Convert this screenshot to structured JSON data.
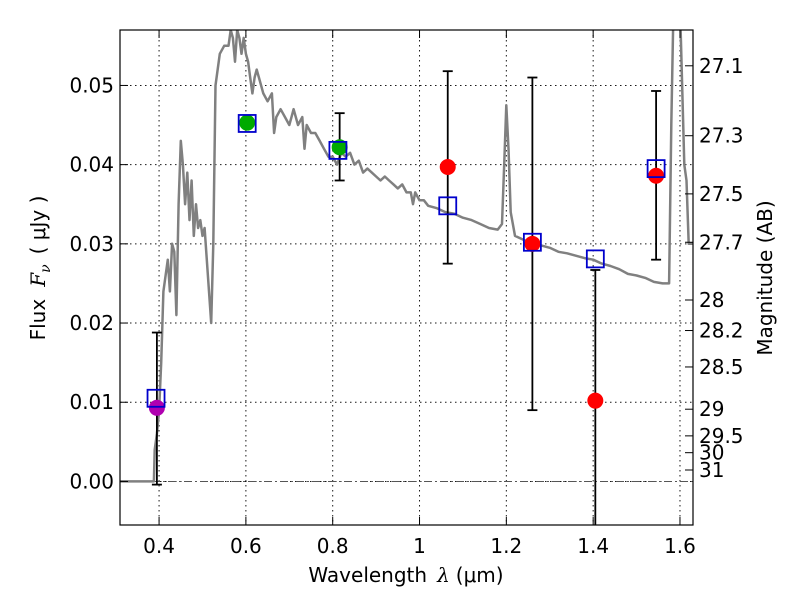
{
  "chart_data": {
    "type": "scatter",
    "title": "",
    "xlabel": "Wavelength",
    "xlabel_symbol": "λ",
    "xlabel_unit": "(μm)",
    "ylabel": "Flux",
    "ylabel_symbol": "F",
    "ylabel_subscript": "ν",
    "ylabel_unit": "( μJy )",
    "ylabel_right": "Magnitude (AB)",
    "xlim": [
      0.31,
      1.63
    ],
    "ylim": [
      -0.0055,
      0.057
    ],
    "grid": true,
    "x_ticks": [
      {
        "value": 0.4,
        "label": "0.4"
      },
      {
        "value": 0.6,
        "label": "0.6"
      },
      {
        "value": 0.8,
        "label": "0.8"
      },
      {
        "value": 1.0,
        "label": "1"
      },
      {
        "value": 1.2,
        "label": "1.2"
      },
      {
        "value": 1.4,
        "label": "1.4"
      },
      {
        "value": 1.6,
        "label": "1.6"
      }
    ],
    "y_ticks": [
      {
        "value": 0.0,
        "label": "0.00"
      },
      {
        "value": 0.01,
        "label": "0.01"
      },
      {
        "value": 0.02,
        "label": "0.02"
      },
      {
        "value": 0.03,
        "label": "0.03"
      },
      {
        "value": 0.04,
        "label": "0.04"
      },
      {
        "value": 0.05,
        "label": "0.05"
      }
    ],
    "mag_ticks": [
      {
        "mag": 27.1,
        "label": "27.1"
      },
      {
        "mag": 27.3,
        "label": "27.3"
      },
      {
        "mag": 27.5,
        "label": "27.5"
      },
      {
        "mag": 27.7,
        "label": "27.7"
      },
      {
        "mag": 28,
        "label": "28"
      },
      {
        "mag": 28.2,
        "label": "28.2"
      },
      {
        "mag": 28.5,
        "label": "28.5"
      },
      {
        "mag": 29,
        "label": "29"
      },
      {
        "mag": 29.5,
        "label": "29.5"
      },
      {
        "mag": 30,
        "label": "30"
      },
      {
        "mag": 31,
        "label": "31"
      }
    ],
    "observed": [
      {
        "x": 0.395,
        "y": 0.0093,
        "yerr_low": 0.0097,
        "yerr_high": 0.0095,
        "color": "#b000b0"
      },
      {
        "x": 0.603,
        "y": 0.0453,
        "yerr_low": null,
        "yerr_high": null,
        "color": "#00aa00"
      },
      {
        "x": 0.816,
        "y": 0.0422,
        "yerr_low": 0.0042,
        "yerr_high": 0.0043,
        "color": "#00aa00"
      },
      {
        "x": 1.065,
        "y": 0.0397,
        "yerr_low": 0.0122,
        "yerr_high": 0.0121,
        "color": "#ff0000"
      },
      {
        "x": 1.26,
        "y": 0.03,
        "yerr_low": 0.021,
        "yerr_high": 0.021,
        "color": "#ff0000"
      },
      {
        "x": 1.405,
        "y": 0.0102,
        "yerr_low": 0.0165,
        "yerr_high": 0.0165,
        "color": "#ff0000"
      },
      {
        "x": 1.545,
        "y": 0.0386,
        "yerr_low": 0.0106,
        "yerr_high": 0.0107,
        "color": "#ff0000"
      }
    ],
    "model_photometry": [
      {
        "x": 0.393,
        "y": 0.0105
      },
      {
        "x": 0.603,
        "y": 0.0452
      },
      {
        "x": 0.812,
        "y": 0.0418
      },
      {
        "x": 1.065,
        "y": 0.0348
      },
      {
        "x": 1.26,
        "y": 0.0302
      },
      {
        "x": 1.405,
        "y": 0.0281
      },
      {
        "x": 1.545,
        "y": 0.0395
      }
    ],
    "model_sed": [
      [
        0.31,
        0.0
      ],
      [
        0.385,
        0.0
      ],
      [
        0.388,
        0.0
      ],
      [
        0.39,
        0.004
      ],
      [
        0.395,
        0.006
      ],
      [
        0.4,
        0.009
      ],
      [
        0.405,
        0.015
      ],
      [
        0.41,
        0.024
      ],
      [
        0.415,
        0.026
      ],
      [
        0.42,
        0.028
      ],
      [
        0.425,
        0.024
      ],
      [
        0.43,
        0.03
      ],
      [
        0.435,
        0.029
      ],
      [
        0.44,
        0.021
      ],
      [
        0.445,
        0.035
      ],
      [
        0.45,
        0.043
      ],
      [
        0.455,
        0.04
      ],
      [
        0.46,
        0.035
      ],
      [
        0.465,
        0.039
      ],
      [
        0.47,
        0.033
      ],
      [
        0.475,
        0.038
      ],
      [
        0.48,
        0.031
      ],
      [
        0.485,
        0.035
      ],
      [
        0.49,
        0.032
      ],
      [
        0.495,
        0.033
      ],
      [
        0.5,
        0.031
      ],
      [
        0.505,
        0.032
      ],
      [
        0.51,
        0.028
      ],
      [
        0.515,
        0.024
      ],
      [
        0.52,
        0.02
      ],
      [
        0.525,
        0.03
      ],
      [
        0.53,
        0.05
      ],
      [
        0.54,
        0.054
      ],
      [
        0.55,
        0.055
      ],
      [
        0.56,
        0.055
      ],
      [
        0.565,
        0.057
      ],
      [
        0.57,
        0.056
      ],
      [
        0.575,
        0.053
      ],
      [
        0.58,
        0.057
      ],
      [
        0.585,
        0.056
      ],
      [
        0.59,
        0.054
      ],
      [
        0.595,
        0.056
      ],
      [
        0.6,
        0.054
      ],
      [
        0.605,
        0.053
      ],
      [
        0.61,
        0.051
      ],
      [
        0.615,
        0.049
      ],
      [
        0.62,
        0.051
      ],
      [
        0.625,
        0.052
      ],
      [
        0.63,
        0.051
      ],
      [
        0.635,
        0.05
      ],
      [
        0.64,
        0.049
      ],
      [
        0.65,
        0.048
      ],
      [
        0.66,
        0.049
      ],
      [
        0.665,
        0.044
      ],
      [
        0.67,
        0.046
      ],
      [
        0.68,
        0.047
      ],
      [
        0.69,
        0.046
      ],
      [
        0.7,
        0.045
      ],
      [
        0.705,
        0.046
      ],
      [
        0.71,
        0.047
      ],
      [
        0.72,
        0.045
      ],
      [
        0.73,
        0.046
      ],
      [
        0.735,
        0.042
      ],
      [
        0.74,
        0.045
      ],
      [
        0.75,
        0.044
      ],
      [
        0.76,
        0.044
      ],
      [
        0.77,
        0.043
      ],
      [
        0.78,
        0.042
      ],
      [
        0.79,
        0.041
      ],
      [
        0.8,
        0.041
      ],
      [
        0.81,
        0.04
      ],
      [
        0.82,
        0.0415
      ],
      [
        0.83,
        0.041
      ],
      [
        0.84,
        0.0415
      ],
      [
        0.85,
        0.04
      ],
      [
        0.86,
        0.0405
      ],
      [
        0.87,
        0.039
      ],
      [
        0.88,
        0.0395
      ],
      [
        0.89,
        0.039
      ],
      [
        0.9,
        0.0385
      ],
      [
        0.91,
        0.038
      ],
      [
        0.92,
        0.0385
      ],
      [
        0.93,
        0.038
      ],
      [
        0.94,
        0.0375
      ],
      [
        0.95,
        0.037
      ],
      [
        0.96,
        0.0375
      ],
      [
        0.97,
        0.0365
      ],
      [
        0.98,
        0.0365
      ],
      [
        0.985,
        0.035
      ],
      [
        0.99,
        0.0365
      ],
      [
        1.0,
        0.0355
      ],
      [
        1.01,
        0.0355
      ],
      [
        1.02,
        0.0348
      ],
      [
        1.04,
        0.0345
      ],
      [
        1.06,
        0.034
      ],
      [
        1.08,
        0.0338
      ],
      [
        1.1,
        0.0333
      ],
      [
        1.12,
        0.033
      ],
      [
        1.14,
        0.0325
      ],
      [
        1.16,
        0.032
      ],
      [
        1.18,
        0.0318
      ],
      [
        1.19,
        0.0325
      ],
      [
        1.195,
        0.04
      ],
      [
        1.2,
        0.0475
      ],
      [
        1.205,
        0.042
      ],
      [
        1.21,
        0.034
      ],
      [
        1.22,
        0.031
      ],
      [
        1.24,
        0.0305
      ],
      [
        1.26,
        0.03
      ],
      [
        1.28,
        0.0298
      ],
      [
        1.3,
        0.0295
      ],
      [
        1.32,
        0.029
      ],
      [
        1.34,
        0.0288
      ],
      [
        1.36,
        0.0285
      ],
      [
        1.38,
        0.0282
      ],
      [
        1.4,
        0.028
      ],
      [
        1.42,
        0.0275
      ],
      [
        1.44,
        0.0272
      ],
      [
        1.46,
        0.0268
      ],
      [
        1.48,
        0.0262
      ],
      [
        1.5,
        0.026
      ],
      [
        1.52,
        0.0257
      ],
      [
        1.54,
        0.0252
      ],
      [
        1.56,
        0.025
      ],
      [
        1.575,
        0.025
      ],
      [
        1.58,
        0.045
      ],
      [
        1.585,
        0.06
      ],
      [
        1.6,
        0.06
      ],
      [
        1.61,
        0.04
      ],
      [
        1.615,
        0.038
      ],
      [
        1.62,
        0.03
      ],
      [
        1.63,
        0.03
      ]
    ],
    "reference_line_y": 0.0
  }
}
